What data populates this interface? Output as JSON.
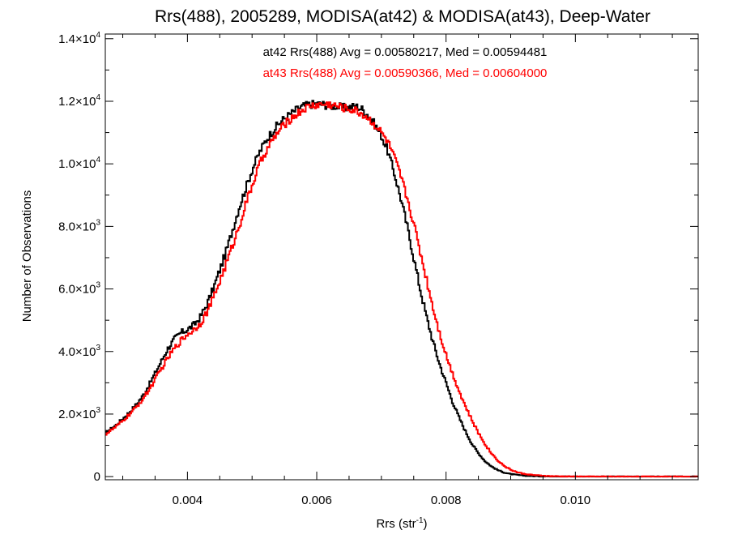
{
  "chart_data": {
    "type": "line",
    "title": "Rrs(488), 2005289, MODISA(at42) & MODISA(at43), Deep-Water",
    "xlabel": {
      "text": "Rrs (str",
      "sup": "-1",
      "suffix": ")"
    },
    "ylabel": "Number of Observations",
    "xlim": [
      0.00273,
      0.0119
    ],
    "ylim": [
      -100,
      14150
    ],
    "x_ticks": [
      {
        "value": 0.004,
        "label": "0.004"
      },
      {
        "value": 0.006,
        "label": "0.006"
      },
      {
        "value": 0.008,
        "label": "0.008"
      },
      {
        "value": 0.01,
        "label": "0.010"
      }
    ],
    "y_ticks": [
      {
        "value": 0,
        "mant": "0",
        "exp": ""
      },
      {
        "value": 2000,
        "mant": "2.0×10",
        "exp": "3"
      },
      {
        "value": 4000,
        "mant": "4.0×10",
        "exp": "3"
      },
      {
        "value": 6000,
        "mant": "6.0×10",
        "exp": "3"
      },
      {
        "value": 8000,
        "mant": "8.0×10",
        "exp": "3"
      },
      {
        "value": 10000,
        "mant": "1.0×10",
        "exp": "4"
      },
      {
        "value": 12000,
        "mant": "1.2×10",
        "exp": "4"
      },
      {
        "value": 14000,
        "mant": "1.4×10",
        "exp": "4"
      }
    ],
    "grid": false,
    "annotations": [
      {
        "text": "at42 Rrs(488) Avg = 0.00580217, Med = 0.00594481",
        "color": "#000000"
      },
      {
        "text": "at43 Rrs(488) Avg = 0.00590366, Med = 0.00604000",
        "color": "#ff0000"
      }
    ],
    "series": [
      {
        "color": "#000000",
        "points": [
          [
            0.00273,
            1380
          ],
          [
            0.0028,
            1500
          ],
          [
            0.0029,
            1650
          ],
          [
            0.003,
            1850
          ],
          [
            0.0031,
            2050
          ],
          [
            0.0032,
            2280
          ],
          [
            0.0033,
            2550
          ],
          [
            0.0034,
            2900
          ],
          [
            0.0035,
            3300
          ],
          [
            0.0036,
            3700
          ],
          [
            0.0037,
            4100
          ],
          [
            0.0038,
            4400
          ],
          [
            0.0039,
            4600
          ],
          [
            0.004,
            4700
          ],
          [
            0.0041,
            4850
          ],
          [
            0.0042,
            5100
          ],
          [
            0.0043,
            5500
          ],
          [
            0.0044,
            6000
          ],
          [
            0.0045,
            6600
          ],
          [
            0.0046,
            7200
          ],
          [
            0.0047,
            7900
          ],
          [
            0.0048,
            8600
          ],
          [
            0.0049,
            9200
          ],
          [
            0.005,
            9800
          ],
          [
            0.0051,
            10300
          ],
          [
            0.0052,
            10700
          ],
          [
            0.0053,
            11000
          ],
          [
            0.0054,
            11250
          ],
          [
            0.0055,
            11450
          ],
          [
            0.0056,
            11600
          ],
          [
            0.0057,
            11750
          ],
          [
            0.0058,
            11850
          ],
          [
            0.0059,
            11900
          ],
          [
            0.006,
            11920
          ],
          [
            0.0061,
            11900
          ],
          [
            0.0062,
            11850
          ],
          [
            0.0063,
            11850
          ],
          [
            0.0064,
            11800
          ],
          [
            0.0065,
            11800
          ],
          [
            0.0066,
            11850
          ],
          [
            0.0067,
            11750
          ],
          [
            0.0068,
            11550
          ],
          [
            0.0069,
            11250
          ],
          [
            0.007,
            10900
          ],
          [
            0.0071,
            10400
          ],
          [
            0.0072,
            9700
          ],
          [
            0.0073,
            8900
          ],
          [
            0.0074,
            8000
          ],
          [
            0.0075,
            7000
          ],
          [
            0.0076,
            6000
          ],
          [
            0.0077,
            5100
          ],
          [
            0.0078,
            4300
          ],
          [
            0.0079,
            3600
          ],
          [
            0.008,
            3000
          ],
          [
            0.0081,
            2400
          ],
          [
            0.0082,
            1900
          ],
          [
            0.0083,
            1450
          ],
          [
            0.0084,
            1050
          ],
          [
            0.0085,
            750
          ],
          [
            0.0086,
            500
          ],
          [
            0.0087,
            330
          ],
          [
            0.0088,
            210
          ],
          [
            0.0089,
            130
          ],
          [
            0.009,
            80
          ],
          [
            0.0092,
            30
          ],
          [
            0.0094,
            12
          ],
          [
            0.0096,
            5
          ],
          [
            0.01,
            2
          ],
          [
            0.0119,
            0
          ]
        ]
      },
      {
        "color": "#ff0000",
        "points": [
          [
            0.00273,
            1350
          ],
          [
            0.0028,
            1450
          ],
          [
            0.0029,
            1600
          ],
          [
            0.003,
            1780
          ],
          [
            0.0031,
            1980
          ],
          [
            0.0032,
            2200
          ],
          [
            0.0033,
            2450
          ],
          [
            0.0034,
            2750
          ],
          [
            0.0035,
            3100
          ],
          [
            0.0036,
            3450
          ],
          [
            0.0037,
            3800
          ],
          [
            0.0038,
            4100
          ],
          [
            0.0039,
            4350
          ],
          [
            0.004,
            4550
          ],
          [
            0.0041,
            4700
          ],
          [
            0.0042,
            4900
          ],
          [
            0.0043,
            5250
          ],
          [
            0.0044,
            5700
          ],
          [
            0.0045,
            6250
          ],
          [
            0.0046,
            6800
          ],
          [
            0.0047,
            7400
          ],
          [
            0.0048,
            8000
          ],
          [
            0.0049,
            8700
          ],
          [
            0.005,
            9300
          ],
          [
            0.0051,
            9900
          ],
          [
            0.0052,
            10350
          ],
          [
            0.0053,
            10700
          ],
          [
            0.0054,
            11000
          ],
          [
            0.0055,
            11250
          ],
          [
            0.0056,
            11450
          ],
          [
            0.0057,
            11600
          ],
          [
            0.0058,
            11750
          ],
          [
            0.0059,
            11850
          ],
          [
            0.006,
            11880
          ],
          [
            0.0061,
            11900
          ],
          [
            0.0062,
            11900
          ],
          [
            0.0063,
            11850
          ],
          [
            0.0064,
            11800
          ],
          [
            0.0065,
            11750
          ],
          [
            0.0066,
            11700
          ],
          [
            0.0067,
            11600
          ],
          [
            0.0068,
            11450
          ],
          [
            0.0069,
            11250
          ],
          [
            0.007,
            11000
          ],
          [
            0.0071,
            10700
          ],
          [
            0.0072,
            10200
          ],
          [
            0.0073,
            9600
          ],
          [
            0.0074,
            8900
          ],
          [
            0.0075,
            8100
          ],
          [
            0.0076,
            7200
          ],
          [
            0.0077,
            6300
          ],
          [
            0.0078,
            5400
          ],
          [
            0.0079,
            4600
          ],
          [
            0.008,
            3900
          ],
          [
            0.0081,
            3300
          ],
          [
            0.0082,
            2750
          ],
          [
            0.0083,
            2250
          ],
          [
            0.0084,
            1800
          ],
          [
            0.0085,
            1400
          ],
          [
            0.0086,
            1050
          ],
          [
            0.0087,
            750
          ],
          [
            0.0088,
            520
          ],
          [
            0.0089,
            340
          ],
          [
            0.009,
            220
          ],
          [
            0.0091,
            140
          ],
          [
            0.0092,
            90
          ],
          [
            0.0094,
            40
          ],
          [
            0.0096,
            15
          ],
          [
            0.0098,
            6
          ],
          [
            0.01,
            2
          ],
          [
            0.0119,
            0
          ]
        ]
      }
    ]
  }
}
